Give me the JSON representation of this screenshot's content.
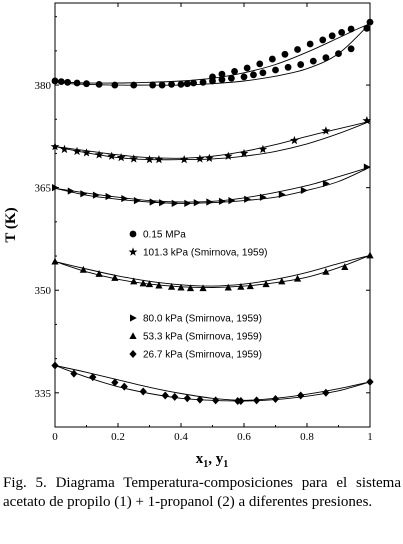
{
  "chart_data": {
    "type": "scatter",
    "xlabel": "x",
    "xlabel_sub1": "1",
    "xlabel_sep": ", y",
    "xlabel_sub2": "1",
    "ylabel": "T (K)",
    "xlim": [
      0,
      1
    ],
    "ylim": [
      330,
      392
    ],
    "xticks": [
      "0",
      "0.2",
      "0.4",
      "0.6",
      "0.8",
      "1"
    ],
    "yticks": [
      "335",
      "350",
      "365",
      "380"
    ],
    "grid": false,
    "legend_position": "inside-left",
    "series": [
      {
        "name": "0.15 MPa",
        "marker": "circle",
        "bubble_curve": {
          "x": [
            0,
            0.05,
            0.1,
            0.2,
            0.3,
            0.4,
            0.5,
            0.6,
            0.7,
            0.8,
            0.9,
            1
          ],
          "y": [
            380.5,
            380.2,
            380.1,
            380.0,
            380.0,
            380.0,
            380.2,
            380.6,
            381.3,
            382.4,
            384.6,
            389.0
          ]
        },
        "dew_curve": {
          "x": [
            0,
            0.1,
            0.2,
            0.3,
            0.4,
            0.5,
            0.6,
            0.7,
            0.8,
            0.9,
            0.95,
            1
          ],
          "y": [
            380.5,
            380.3,
            380.3,
            380.4,
            380.6,
            381.0,
            381.8,
            383.0,
            384.8,
            386.9,
            388.0,
            389.0
          ]
        },
        "points": {
          "x": [
            0,
            0.02,
            0.04,
            0.07,
            0.1,
            0.14,
            0.19,
            0.25,
            0.31,
            0.34,
            0.37,
            0.4,
            0.42,
            0.44,
            0.47,
            0.5,
            0.53,
            0.56,
            0.6,
            0.63,
            0.66,
            0.7,
            0.74,
            0.78,
            0.82,
            0.86,
            0.9,
            0.94,
            0.99,
            1,
            0.5,
            0.53,
            0.57,
            0.61,
            0.65,
            0.69,
            0.73,
            0.77,
            0.81,
            0.85,
            0.88,
            0.91,
            0.94
          ],
          "y": [
            380.6,
            380.5,
            380.4,
            380.3,
            380.2,
            380.1,
            380.0,
            380.0,
            380.0,
            380.0,
            380.1,
            380.1,
            380.2,
            380.3,
            380.4,
            380.6,
            380.8,
            381.0,
            381.2,
            381.5,
            381.8,
            382.2,
            382.6,
            383.0,
            383.5,
            384.0,
            384.6,
            385.3,
            388.3,
            389.2,
            381.2,
            381.6,
            382.0,
            382.5,
            383.1,
            383.8,
            384.5,
            385.2,
            386.0,
            386.6,
            387.2,
            387.7,
            388.2
          ]
        }
      },
      {
        "name": "101.3 kPa (Smirnova, 1959)",
        "marker": "star",
        "bubble_curve": {
          "x": [
            0,
            0.1,
            0.2,
            0.3,
            0.4,
            0.5,
            0.6,
            0.7,
            0.8,
            0.9,
            1
          ],
          "y": [
            371.0,
            370.1,
            369.4,
            369.1,
            369.1,
            369.2,
            369.6,
            370.3,
            371.4,
            372.9,
            374.7
          ]
        },
        "dew_curve": {
          "x": [
            0,
            0.1,
            0.2,
            0.3,
            0.4,
            0.5,
            0.6,
            0.7,
            0.8,
            0.9,
            1
          ],
          "y": [
            371.0,
            370.4,
            369.8,
            369.4,
            369.3,
            369.6,
            370.3,
            371.3,
            372.5,
            373.6,
            374.7
          ]
        },
        "points": {
          "x": [
            0,
            0.03,
            0.07,
            0.1,
            0.14,
            0.18,
            0.21,
            0.25,
            0.3,
            0.33,
            0.41,
            0.46,
            0.49,
            0.55,
            0.6,
            0.66,
            0.76,
            0.86,
            0.99
          ],
          "y": [
            371.0,
            370.6,
            370.3,
            370.1,
            369.8,
            369.6,
            369.4,
            369.2,
            369.1,
            369.1,
            369.1,
            369.2,
            369.3,
            369.6,
            370.0,
            370.6,
            371.9,
            373.3,
            374.8
          ]
        }
      },
      {
        "name": "80.0 kPa (Smirnova, 1959)",
        "marker": "triangle-right",
        "bubble_curve": {
          "x": [
            0,
            0.1,
            0.2,
            0.3,
            0.4,
            0.5,
            0.6,
            0.7,
            0.8,
            0.9,
            1
          ],
          "y": [
            364.9,
            363.9,
            363.3,
            362.9,
            362.7,
            362.8,
            363.1,
            363.6,
            364.6,
            365.9,
            368.0
          ]
        },
        "dew_curve": {
          "x": [
            0,
            0.1,
            0.2,
            0.3,
            0.4,
            0.5,
            0.6,
            0.7,
            0.8,
            0.9,
            1
          ],
          "y": [
            364.9,
            364.2,
            363.6,
            363.1,
            362.9,
            363.0,
            363.5,
            364.3,
            365.3,
            366.6,
            368.0
          ]
        },
        "points": {
          "x": [
            0,
            0.05,
            0.09,
            0.13,
            0.17,
            0.22,
            0.26,
            0.31,
            0.34,
            0.38,
            0.42,
            0.45,
            0.49,
            0.53,
            0.56,
            0.61,
            0.66,
            0.72,
            0.79,
            0.86,
            0.99
          ],
          "y": [
            365.0,
            364.5,
            364.1,
            363.9,
            363.7,
            363.4,
            363.1,
            362.9,
            362.8,
            362.7,
            362.7,
            362.8,
            362.9,
            363.0,
            363.1,
            363.3,
            363.6,
            364.0,
            364.6,
            365.6,
            368.0
          ]
        }
      },
      {
        "name": "53.3 kPa (Smirnova, 1959)",
        "marker": "triangle-up",
        "bubble_curve": {
          "x": [
            0,
            0.1,
            0.2,
            0.3,
            0.4,
            0.5,
            0.6,
            0.7,
            0.8,
            0.9,
            1
          ],
          "y": [
            354.2,
            352.7,
            351.6,
            350.9,
            350.5,
            350.4,
            350.6,
            351.1,
            351.9,
            353.3,
            355.1
          ]
        },
        "dew_curve": {
          "x": [
            0,
            0.1,
            0.2,
            0.3,
            0.4,
            0.5,
            0.6,
            0.7,
            0.8,
            0.9,
            1
          ],
          "y": [
            354.2,
            353.1,
            352.1,
            351.3,
            350.8,
            350.6,
            350.9,
            351.6,
            352.6,
            353.9,
            355.1
          ]
        },
        "points": {
          "x": [
            0,
            0.09,
            0.14,
            0.19,
            0.25,
            0.28,
            0.3,
            0.33,
            0.37,
            0.4,
            0.43,
            0.47,
            0.55,
            0.59,
            0.62,
            0.67,
            0.72,
            0.77,
            0.86,
            0.92,
            1
          ],
          "y": [
            354.2,
            353.0,
            352.4,
            351.8,
            351.3,
            351.0,
            350.9,
            350.7,
            350.5,
            350.4,
            350.3,
            350.3,
            350.4,
            350.5,
            350.6,
            350.9,
            351.3,
            351.7,
            352.7,
            353.4,
            355.1
          ]
        }
      },
      {
        "name": "26.7 kPa (Smirnova, 1959)",
        "marker": "diamond",
        "bubble_curve": {
          "x": [
            0,
            0.1,
            0.2,
            0.3,
            0.4,
            0.5,
            0.6,
            0.7,
            0.8,
            0.9,
            1
          ],
          "y": [
            339.0,
            337.3,
            335.9,
            334.9,
            334.2,
            333.9,
            333.8,
            334.0,
            334.5,
            335.3,
            336.6
          ]
        },
        "dew_curve": {
          "x": [
            0,
            0.1,
            0.2,
            0.3,
            0.4,
            0.5,
            0.6,
            0.7,
            0.8,
            0.9,
            1
          ],
          "y": [
            339.0,
            338.0,
            336.9,
            335.8,
            334.9,
            334.2,
            333.9,
            334.2,
            334.8,
            335.6,
            336.6
          ]
        },
        "points": {
          "x": [
            0,
            0.06,
            0.12,
            0.19,
            0.22,
            0.28,
            0.35,
            0.38,
            0.42,
            0.46,
            0.51,
            0.58,
            0.59,
            0.64,
            0.7,
            0.78,
            0.86,
            1
          ],
          "y": [
            339.0,
            337.8,
            337.3,
            336.5,
            335.9,
            335.2,
            334.6,
            334.4,
            334.2,
            334.0,
            333.9,
            333.8,
            333.8,
            333.9,
            334.1,
            334.6,
            335.0,
            336.6
          ]
        }
      }
    ]
  },
  "caption": "Fig. 5.  Diagrama Temperatura-composiciones para el sistema acetato de propilo (1) + 1-propanol (2) a diferentes presiones."
}
